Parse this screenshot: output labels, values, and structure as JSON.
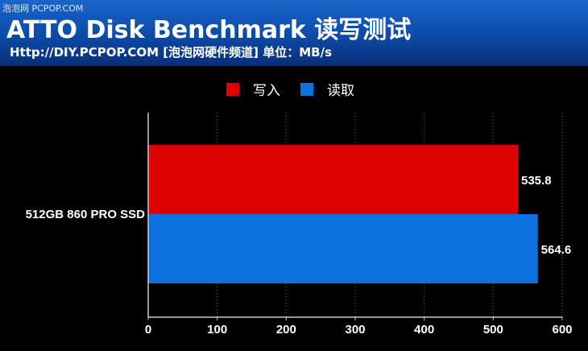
{
  "watermark": "泡泡网 PCPOP.COM",
  "header": {
    "title": "ATTO Disk Benchmark 读写测试",
    "subtitle": "Http://DIY.PCPOP.COM [泡泡网硬件频道] 单位：MB/s"
  },
  "chart_data": {
    "type": "bar",
    "orientation": "horizontal",
    "categories": [
      "512GB 860 PRO SSD"
    ],
    "series": [
      {
        "name": "写入",
        "values": [
          535.8
        ],
        "color": "#e00000"
      },
      {
        "name": "读取",
        "values": [
          564.6
        ],
        "color": "#0a73de"
      }
    ],
    "data_labels": [
      "535.8",
      "564.6"
    ],
    "xlim": [
      0,
      600
    ],
    "xticks": [
      0,
      100,
      200,
      300,
      400,
      500,
      600
    ],
    "xlabel": "",
    "ylabel": "",
    "grid": "vertical dotted",
    "legend_position": "top-center"
  }
}
